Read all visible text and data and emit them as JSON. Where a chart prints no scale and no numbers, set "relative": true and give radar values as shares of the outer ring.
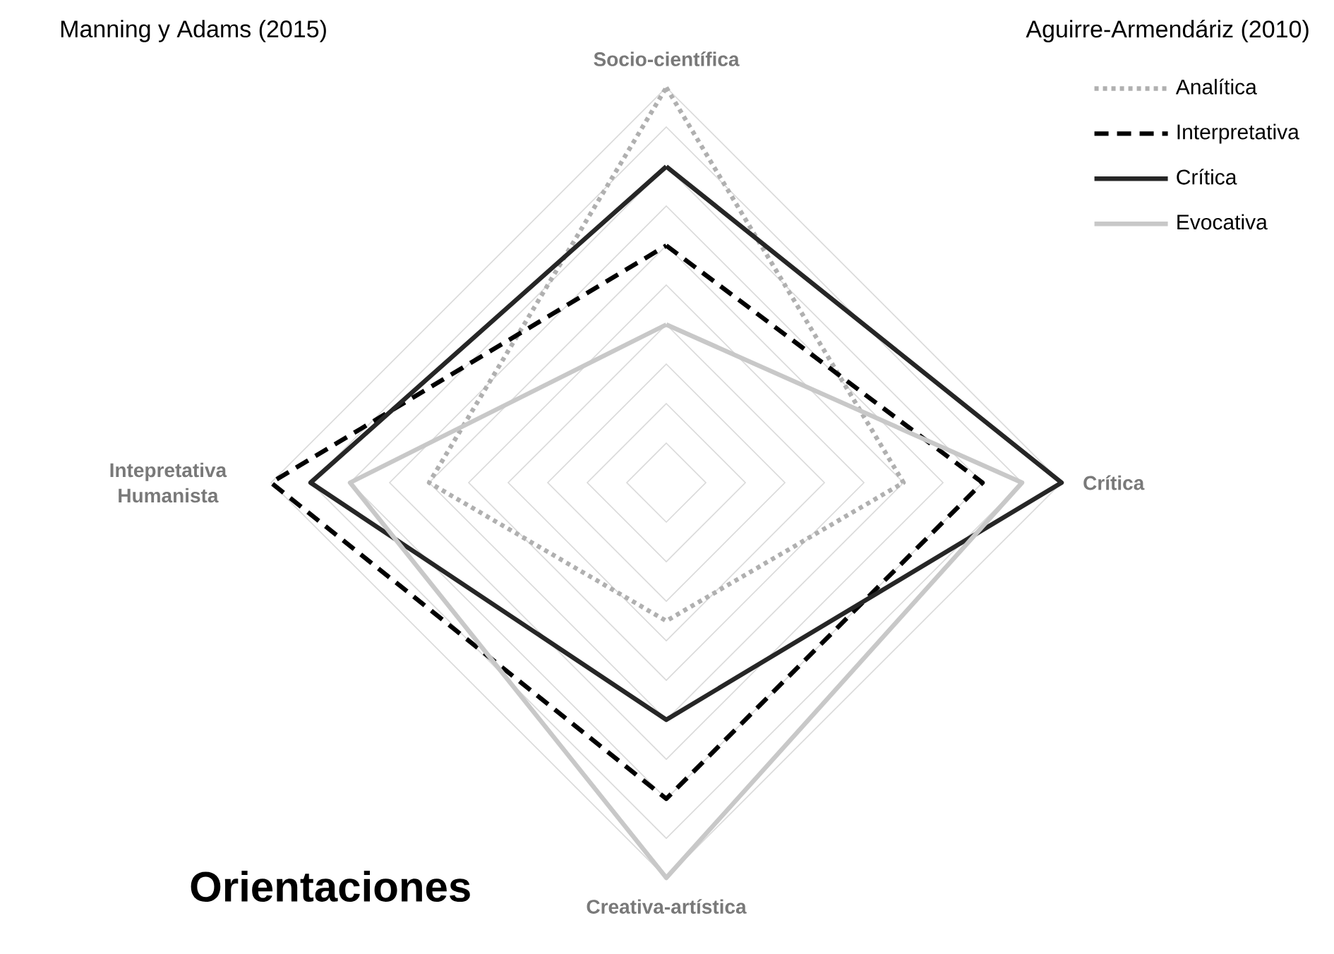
{
  "chart_data": {
    "type": "radar",
    "title": "Orientaciones",
    "categories": [
      "Socio-científica",
      "Crítica",
      "Creativa-artística",
      "Intepretativa Humanista"
    ],
    "relative": true,
    "grid": true,
    "legend": "top right",
    "annotations": [
      "Manning y Adams (2015)",
      "Aguirre-Armendáriz (2010)"
    ],
    "series": [
      {
        "name": "Analítica",
        "color": "#b0b0b0",
        "line_style": "dotted",
        "values": [
          1.0,
          0.6,
          0.35,
          0.6
        ]
      },
      {
        "name": "Interpretativa",
        "color": "#000000",
        "line_style": "dashed",
        "values": [
          0.6,
          0.8,
          0.8,
          1.0
        ]
      },
      {
        "name": "Crítica",
        "color": "#262626",
        "line_style": "solid",
        "values": [
          0.8,
          1.0,
          0.6,
          0.9
        ]
      },
      {
        "name": "Evocativa",
        "color": "#c8c8c8",
        "line_style": "solid",
        "values": [
          0.4,
          0.9,
          1.0,
          0.8
        ]
      }
    ]
  }
}
